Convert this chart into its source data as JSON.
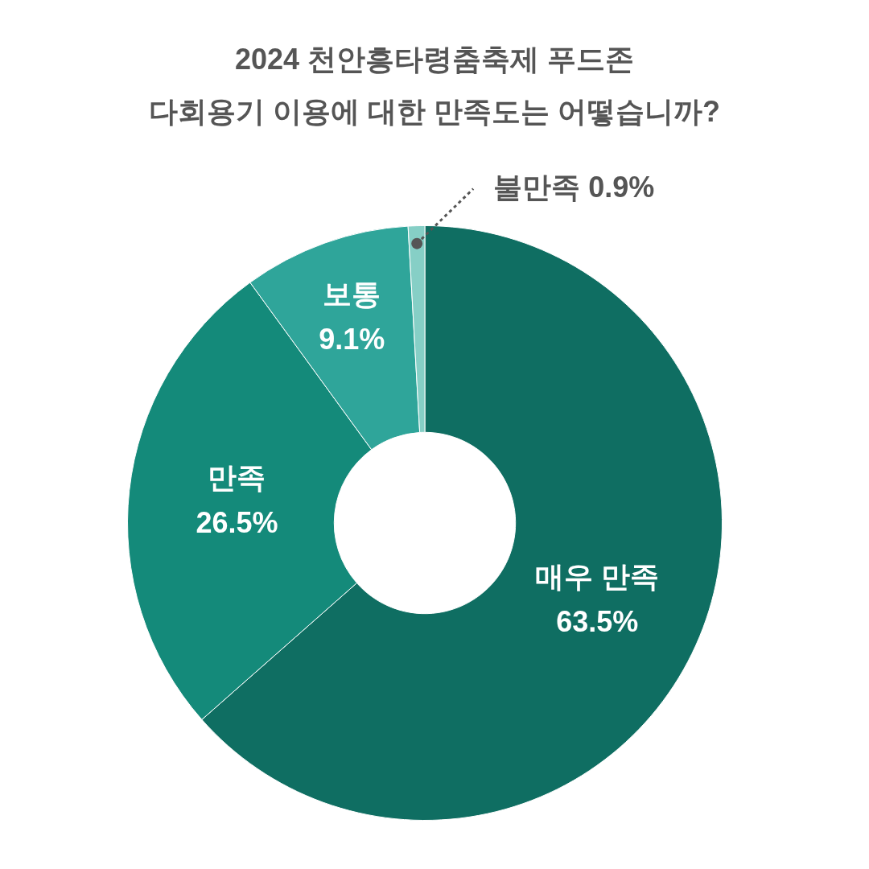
{
  "chart_data": {
    "type": "donut",
    "title": "2024 천안흥타령춤축제 푸드존",
    "subtitle": "다회용기 이용에 대한 만족도는 어떻습니까?",
    "categories": [
      "매우 만족",
      "만족",
      "보통",
      "불만족"
    ],
    "values": [
      63.5,
      26.5,
      9.1,
      0.9
    ],
    "colors": [
      "#0f6e62",
      "#148a7a",
      "#2fa59a",
      "#86cfc6"
    ],
    "value_labels": [
      "63.5%",
      "26.5%",
      "9.1%",
      "0.9%"
    ],
    "legend": false
  }
}
